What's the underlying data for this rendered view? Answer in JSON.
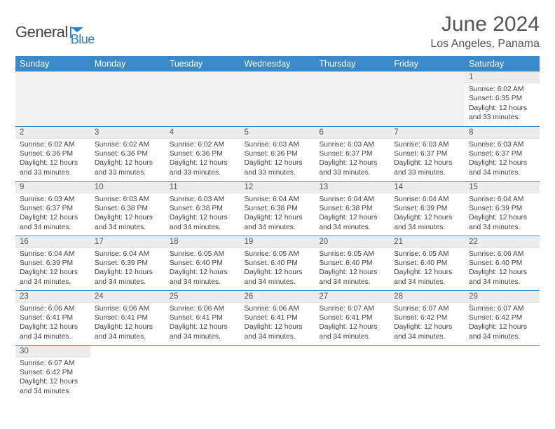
{
  "brand": {
    "name1": "General",
    "name2": "Blue",
    "logo_color": "#2b7fc3"
  },
  "title": "June 2024",
  "location": "Los Angeles, Panama",
  "colors": {
    "header_bg": "#3a8ac9",
    "header_fg": "#ffffff",
    "daynum_bg": "#ececec",
    "cell_border": "#3a8ac9"
  },
  "weekdays": [
    "Sunday",
    "Monday",
    "Tuesday",
    "Wednesday",
    "Thursday",
    "Friday",
    "Saturday"
  ],
  "weeks": [
    [
      null,
      null,
      null,
      null,
      null,
      null,
      {
        "n": "1",
        "sr": "Sunrise: 6:02 AM",
        "ss": "Sunset: 6:35 PM",
        "d1": "Daylight: 12 hours",
        "d2": "and 33 minutes."
      }
    ],
    [
      {
        "n": "2",
        "sr": "Sunrise: 6:02 AM",
        "ss": "Sunset: 6:36 PM",
        "d1": "Daylight: 12 hours",
        "d2": "and 33 minutes."
      },
      {
        "n": "3",
        "sr": "Sunrise: 6:02 AM",
        "ss": "Sunset: 6:36 PM",
        "d1": "Daylight: 12 hours",
        "d2": "and 33 minutes."
      },
      {
        "n": "4",
        "sr": "Sunrise: 6:02 AM",
        "ss": "Sunset: 6:36 PM",
        "d1": "Daylight: 12 hours",
        "d2": "and 33 minutes."
      },
      {
        "n": "5",
        "sr": "Sunrise: 6:03 AM",
        "ss": "Sunset: 6:36 PM",
        "d1": "Daylight: 12 hours",
        "d2": "and 33 minutes."
      },
      {
        "n": "6",
        "sr": "Sunrise: 6:03 AM",
        "ss": "Sunset: 6:37 PM",
        "d1": "Daylight: 12 hours",
        "d2": "and 33 minutes."
      },
      {
        "n": "7",
        "sr": "Sunrise: 6:03 AM",
        "ss": "Sunset: 6:37 PM",
        "d1": "Daylight: 12 hours",
        "d2": "and 33 minutes."
      },
      {
        "n": "8",
        "sr": "Sunrise: 6:03 AM",
        "ss": "Sunset: 6:37 PM",
        "d1": "Daylight: 12 hours",
        "d2": "and 34 minutes."
      }
    ],
    [
      {
        "n": "9",
        "sr": "Sunrise: 6:03 AM",
        "ss": "Sunset: 6:37 PM",
        "d1": "Daylight: 12 hours",
        "d2": "and 34 minutes."
      },
      {
        "n": "10",
        "sr": "Sunrise: 6:03 AM",
        "ss": "Sunset: 6:38 PM",
        "d1": "Daylight: 12 hours",
        "d2": "and 34 minutes."
      },
      {
        "n": "11",
        "sr": "Sunrise: 6:03 AM",
        "ss": "Sunset: 6:38 PM",
        "d1": "Daylight: 12 hours",
        "d2": "and 34 minutes."
      },
      {
        "n": "12",
        "sr": "Sunrise: 6:04 AM",
        "ss": "Sunset: 6:38 PM",
        "d1": "Daylight: 12 hours",
        "d2": "and 34 minutes."
      },
      {
        "n": "13",
        "sr": "Sunrise: 6:04 AM",
        "ss": "Sunset: 6:38 PM",
        "d1": "Daylight: 12 hours",
        "d2": "and 34 minutes."
      },
      {
        "n": "14",
        "sr": "Sunrise: 6:04 AM",
        "ss": "Sunset: 6:39 PM",
        "d1": "Daylight: 12 hours",
        "d2": "and 34 minutes."
      },
      {
        "n": "15",
        "sr": "Sunrise: 6:04 AM",
        "ss": "Sunset: 6:39 PM",
        "d1": "Daylight: 12 hours",
        "d2": "and 34 minutes."
      }
    ],
    [
      {
        "n": "16",
        "sr": "Sunrise: 6:04 AM",
        "ss": "Sunset: 6:39 PM",
        "d1": "Daylight: 12 hours",
        "d2": "and 34 minutes."
      },
      {
        "n": "17",
        "sr": "Sunrise: 6:04 AM",
        "ss": "Sunset: 6:39 PM",
        "d1": "Daylight: 12 hours",
        "d2": "and 34 minutes."
      },
      {
        "n": "18",
        "sr": "Sunrise: 6:05 AM",
        "ss": "Sunset: 6:40 PM",
        "d1": "Daylight: 12 hours",
        "d2": "and 34 minutes."
      },
      {
        "n": "19",
        "sr": "Sunrise: 6:05 AM",
        "ss": "Sunset: 6:40 PM",
        "d1": "Daylight: 12 hours",
        "d2": "and 34 minutes."
      },
      {
        "n": "20",
        "sr": "Sunrise: 6:05 AM",
        "ss": "Sunset: 6:40 PM",
        "d1": "Daylight: 12 hours",
        "d2": "and 34 minutes."
      },
      {
        "n": "21",
        "sr": "Sunrise: 6:05 AM",
        "ss": "Sunset: 6:40 PM",
        "d1": "Daylight: 12 hours",
        "d2": "and 34 minutes."
      },
      {
        "n": "22",
        "sr": "Sunrise: 6:06 AM",
        "ss": "Sunset: 6:40 PM",
        "d1": "Daylight: 12 hours",
        "d2": "and 34 minutes."
      }
    ],
    [
      {
        "n": "23",
        "sr": "Sunrise: 6:06 AM",
        "ss": "Sunset: 6:41 PM",
        "d1": "Daylight: 12 hours",
        "d2": "and 34 minutes."
      },
      {
        "n": "24",
        "sr": "Sunrise: 6:06 AM",
        "ss": "Sunset: 6:41 PM",
        "d1": "Daylight: 12 hours",
        "d2": "and 34 minutes."
      },
      {
        "n": "25",
        "sr": "Sunrise: 6:06 AM",
        "ss": "Sunset: 6:41 PM",
        "d1": "Daylight: 12 hours",
        "d2": "and 34 minutes."
      },
      {
        "n": "26",
        "sr": "Sunrise: 6:06 AM",
        "ss": "Sunset: 6:41 PM",
        "d1": "Daylight: 12 hours",
        "d2": "and 34 minutes."
      },
      {
        "n": "27",
        "sr": "Sunrise: 6:07 AM",
        "ss": "Sunset: 6:41 PM",
        "d1": "Daylight: 12 hours",
        "d2": "and 34 minutes."
      },
      {
        "n": "28",
        "sr": "Sunrise: 6:07 AM",
        "ss": "Sunset: 6:42 PM",
        "d1": "Daylight: 12 hours",
        "d2": "and 34 minutes."
      },
      {
        "n": "29",
        "sr": "Sunrise: 6:07 AM",
        "ss": "Sunset: 6:42 PM",
        "d1": "Daylight: 12 hours",
        "d2": "and 34 minutes."
      }
    ],
    [
      {
        "n": "30",
        "sr": "Sunrise: 6:07 AM",
        "ss": "Sunset: 6:42 PM",
        "d1": "Daylight: 12 hours",
        "d2": "and 34 minutes."
      },
      null,
      null,
      null,
      null,
      null,
      null
    ]
  ]
}
